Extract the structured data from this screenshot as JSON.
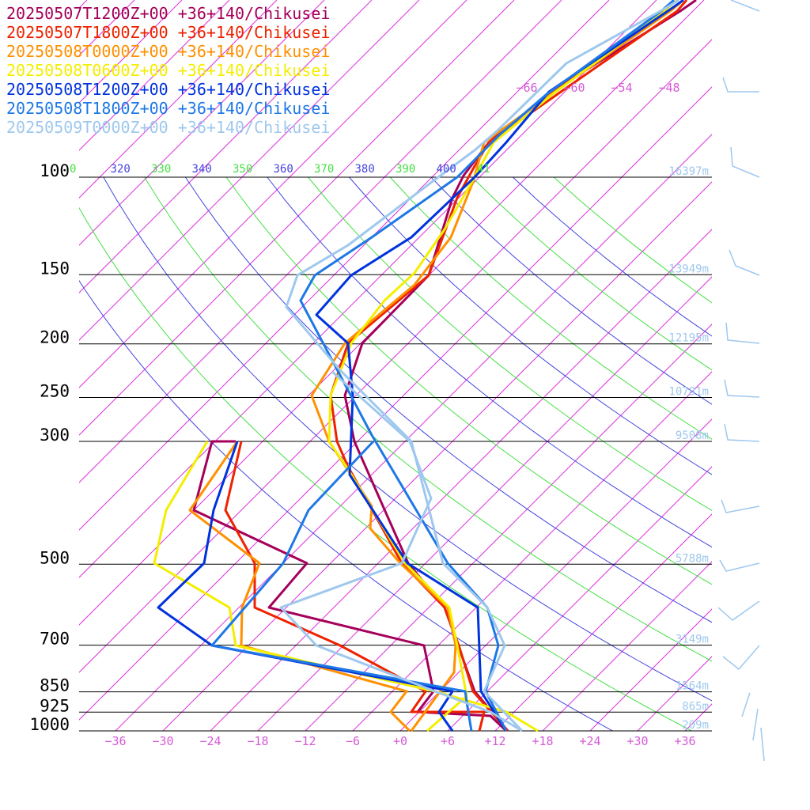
{
  "chart_data": {
    "type": "skew-t",
    "legend": [
      {
        "label": "20250507T1200Z+00 +36+140/Chikusei",
        "color": "#a5005a"
      },
      {
        "label": "20250507T1800Z+00 +36+140/Chikusei",
        "color": "#ee2200"
      },
      {
        "label": "20250508T0000Z+00 +36+140/Chikusei",
        "color": "#ff9000"
      },
      {
        "label": "20250508T0600Z+00 +36+140/Chikusei",
        "color": "#f4ee00"
      },
      {
        "label": "20250508T1200Z+00 +36+140/Chikusei",
        "color": "#0033dd"
      },
      {
        "label": "20250508T1800Z+00 +36+140/Chikusei",
        "color": "#1e78e6"
      },
      {
        "label": "20250509T0000Z+00 +36+140/Chikusei",
        "color": "#9ec8ee"
      }
    ],
    "pressure_levels": [
      {
        "label": "100",
        "p": 100
      },
      {
        "label": "150",
        "p": 150
      },
      {
        "label": "200",
        "p": 200
      },
      {
        "label": "250",
        "p": 250
      },
      {
        "label": "300",
        "p": 300
      },
      {
        "label": "500",
        "p": 500
      },
      {
        "label": "700",
        "p": 700
      },
      {
        "label": "850",
        "p": 850
      },
      {
        "label": "925",
        "p": 925
      },
      {
        "label": "1000",
        "p": 1000
      }
    ],
    "heights": [
      {
        "p": 100,
        "label": "16397m"
      },
      {
        "p": 150,
        "label": "13949m"
      },
      {
        "p": 200,
        "label": "12195m"
      },
      {
        "p": 250,
        "label": "10781m"
      },
      {
        "p": 300,
        "label": "9508m"
      },
      {
        "p": 500,
        "label": "5788m"
      },
      {
        "p": 700,
        "label": "3149m"
      },
      {
        "p": 850,
        "label": "1564m"
      },
      {
        "p": 925,
        "label": "865m"
      },
      {
        "p": 1000,
        "label": "209m"
      }
    ],
    "temperature_ticks": [
      {
        "t": -36,
        "label": "−36"
      },
      {
        "t": -30,
        "label": "−30"
      },
      {
        "t": -24,
        "label": "−24"
      },
      {
        "t": -18,
        "label": "−18"
      },
      {
        "t": -12,
        "label": "−12"
      },
      {
        "t": -6,
        "label": "−6"
      },
      {
        "t": 0,
        "label": "+0"
      },
      {
        "t": 6,
        "label": "+6"
      },
      {
        "t": 12,
        "label": "+12"
      },
      {
        "t": 18,
        "label": "+18"
      },
      {
        "t": 24,
        "label": "+24"
      },
      {
        "t": 30,
        "label": "+30"
      },
      {
        "t": 36,
        "label": "+36"
      }
    ],
    "upper_temperature_ticks": [
      {
        "t": -66,
        "label": "−66"
      },
      {
        "t": -60,
        "label": "−60"
      },
      {
        "t": -54,
        "label": "−54"
      },
      {
        "t": -48,
        "label": "−48"
      }
    ],
    "theta_labels": [
      {
        "label": "0",
        "color": "#44e044"
      },
      {
        "label": "320",
        "color": "#4444dd"
      },
      {
        "label": "330",
        "color": "#44e044"
      },
      {
        "label": "340",
        "color": "#4444dd"
      },
      {
        "label": "350",
        "color": "#44e044"
      },
      {
        "label": "360",
        "color": "#4444dd"
      },
      {
        "label": "370",
        "color": "#44e044"
      },
      {
        "label": "380",
        "color": "#4444dd"
      },
      {
        "label": "390",
        "color": "#44e044"
      },
      {
        "label": "400",
        "color": "#4444dd"
      },
      {
        "label": "41",
        "color": "#44e044"
      }
    ],
    "colors": {
      "isotherm": "#dd33dd",
      "theta_a": "#44e044",
      "theta_b": "#4444dd",
      "isobar": "#000000"
    }
  }
}
